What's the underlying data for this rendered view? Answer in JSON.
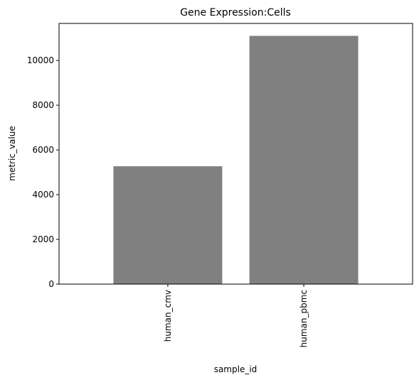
{
  "chart_data": {
    "type": "bar",
    "title": "Gene Expression:Cells",
    "xlabel": "sample_id",
    "ylabel": "metric_value",
    "categories": [
      "human_cmv",
      "human_pbmc"
    ],
    "values": [
      5270,
      11100
    ],
    "ylim": [
      0,
      11655
    ],
    "yticks": [
      0,
      2000,
      4000,
      6000,
      8000,
      10000
    ],
    "bar_color": "#808080",
    "grid": false,
    "legend": "none",
    "x_tick_rotation": "vertical"
  }
}
